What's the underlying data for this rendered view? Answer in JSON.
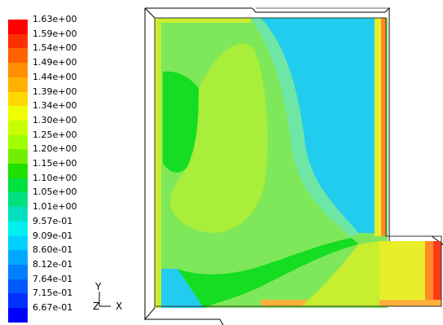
{
  "legend": {
    "labels": [
      "1.63e+00",
      "1.59e+00",
      "1.54e+00",
      "1.49e+00",
      "1.44e+00",
      "1.39e+00",
      "1.34e+00",
      "1.30e+00",
      "1.25e+00",
      "1.20e+00",
      "1.15e+00",
      "1.10e+00",
      "1.05e+00",
      "1.01e+00",
      "9.57e-01",
      "9.09e-01",
      "8.60e-01",
      "8.12e-01",
      "7.64e-01",
      "7.15e-01",
      "6.67e-01"
    ],
    "colors": [
      "#ff0000",
      "#ff3000",
      "#ff6000",
      "#ff9000",
      "#ffb000",
      "#ffd800",
      "#f0ff00",
      "#c8ff00",
      "#a0ff00",
      "#70f000",
      "#20e000",
      "#00e040",
      "#00e080",
      "#00e0c0",
      "#00f0f0",
      "#00d0ff",
      "#00a8ff",
      "#0080ff",
      "#0058ff",
      "#0030ff",
      "#0000ff"
    ]
  },
  "axes": {
    "y_label": "Y",
    "z_label": "Z",
    "x_label": "X"
  },
  "palette": {
    "cyan": "#22ccee",
    "green": "#14dd22",
    "yellowgreen": "#a8ee3a",
    "lightgreen": "#7ee85a",
    "yellow": "#e8ee2a",
    "orange": "#ff8a2a",
    "red": "#ff3a1a",
    "outline": "#000000"
  }
}
